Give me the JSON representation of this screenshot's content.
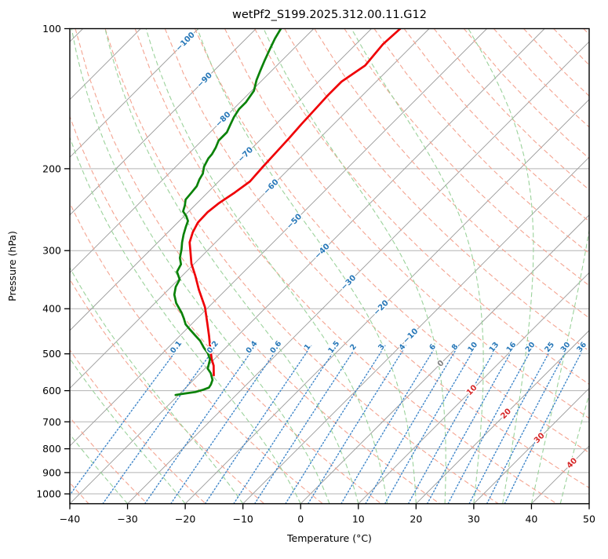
{
  "title": "wetPf2_S199.2025.312.00.11.G12",
  "x_axis": {
    "label": "Temperature (°C)",
    "ticks": [
      -40,
      -30,
      -20,
      -10,
      0,
      10,
      20,
      30,
      40,
      50
    ]
  },
  "y_axis": {
    "label": "Pressure (hPa)",
    "ticks": [
      100,
      200,
      300,
      400,
      500,
      600,
      700,
      800,
      900,
      1000
    ]
  },
  "chart_data": {
    "type": "line",
    "subtype": "skewT-logP",
    "temperature_axis_range_c": [
      -40,
      50
    ],
    "pressure_range_hpa": [
      100,
      1050
    ],
    "skew_deg": 45,
    "grid": true,
    "series": [
      {
        "name": "temperature",
        "color": "#ef0005",
        "units": [
          "hPa",
          "degC"
        ],
        "points": [
          [
            100,
            -65.0
          ],
          [
            108,
            -65.3
          ],
          [
            120,
            -64.7
          ],
          [
            130,
            -66.0
          ],
          [
            139,
            -66.0
          ],
          [
            149,
            -65.8
          ],
          [
            160,
            -65.6
          ],
          [
            172,
            -65.3
          ],
          [
            184,
            -65.1
          ],
          [
            198,
            -64.9
          ],
          [
            213,
            -64.6
          ],
          [
            225,
            -65.3
          ],
          [
            237,
            -66.2
          ],
          [
            248,
            -66.6
          ],
          [
            261,
            -66.5
          ],
          [
            274,
            -65.7
          ],
          [
            288,
            -64.5
          ],
          [
            298,
            -63.2
          ],
          [
            320,
            -60.5
          ],
          [
            340,
            -57.7
          ],
          [
            364,
            -54.7
          ],
          [
            397,
            -50.6
          ],
          [
            429,
            -47.5
          ],
          [
            458,
            -44.9
          ],
          [
            485,
            -42.7
          ],
          [
            514,
            -40.4
          ],
          [
            530,
            -39.0
          ],
          [
            556,
            -37.3
          ]
        ]
      },
      {
        "name": "dewpoint",
        "color": "#0b8209",
        "units": [
          "hPa",
          "degC"
        ],
        "points": [
          [
            100,
            -85.7
          ],
          [
            105,
            -85.0
          ],
          [
            111,
            -84.0
          ],
          [
            117,
            -83.0
          ],
          [
            123,
            -82.0
          ],
          [
            129,
            -81.0
          ],
          [
            136,
            -79.6
          ],
          [
            144,
            -79.0
          ],
          [
            149,
            -79.0
          ],
          [
            155,
            -78.5
          ],
          [
            161,
            -77.8
          ],
          [
            167,
            -77.1
          ],
          [
            174,
            -77.1
          ],
          [
            180,
            -76.4
          ],
          [
            186,
            -75.9
          ],
          [
            190,
            -75.8
          ],
          [
            198,
            -75.1
          ],
          [
            205,
            -74.1
          ],
          [
            211,
            -73.7
          ],
          [
            218,
            -73.0
          ],
          [
            225,
            -72.8
          ],
          [
            233,
            -72.6
          ],
          [
            240,
            -71.7
          ],
          [
            247,
            -71.0
          ],
          [
            253,
            -69.6
          ],
          [
            259,
            -68.5
          ],
          [
            266,
            -67.9
          ],
          [
            277,
            -66.9
          ],
          [
            288,
            -65.8
          ],
          [
            298,
            -64.7
          ],
          [
            311,
            -63.5
          ],
          [
            321,
            -62.2
          ],
          [
            333,
            -61.6
          ],
          [
            346,
            -59.8
          ],
          [
            359,
            -59.2
          ],
          [
            373,
            -58.1
          ],
          [
            389,
            -56.3
          ],
          [
            408,
            -53.7
          ],
          [
            419,
            -52.4
          ],
          [
            432,
            -51.0
          ],
          [
            445,
            -49.1
          ],
          [
            460,
            -46.9
          ],
          [
            469,
            -45.6
          ],
          [
            485,
            -43.8
          ],
          [
            498,
            -42.2
          ],
          [
            514,
            -40.7
          ],
          [
            520,
            -40.4
          ],
          [
            538,
            -39.5
          ],
          [
            550,
            -38.2
          ],
          [
            569,
            -36.7
          ],
          [
            582,
            -36.2
          ],
          [
            591,
            -36.0
          ],
          [
            597,
            -36.6
          ],
          [
            604,
            -37.6
          ],
          [
            608,
            -39.0
          ],
          [
            613,
            -40.5
          ]
        ]
      }
    ],
    "isotherms": {
      "t_start": -130,
      "t_end": 50,
      "step": 10,
      "color": "#999999",
      "labels": [
        [
          -100,
          53
        ],
        [
          -90,
          102
        ],
        [
          -80,
          152
        ],
        [
          -70,
          197
        ],
        [
          -60,
          238
        ],
        [
          -50,
          282
        ],
        [
          -40,
          320
        ],
        [
          -30,
          360
        ],
        [
          -20,
          392
        ],
        [
          -10,
          428
        ],
        [
          0,
          463
        ],
        [
          10,
          497
        ],
        [
          20,
          527
        ],
        [
          30,
          558
        ],
        [
          40,
          590
        ]
      ],
      "label_color_negative": "#2878b8",
      "label_color_zero": "#808080",
      "label_color_positive": "#d62728"
    },
    "dry_adiabats": {
      "theta_start_c": -40,
      "theta_end_c": 190,
      "step_c": 10,
      "color": "#f4a491"
    },
    "moist_adiabats": {
      "tw_values_c": [
        -40,
        -30,
        -20,
        -10,
        0,
        5,
        10,
        15,
        20,
        25,
        30,
        35,
        40,
        45,
        50
      ],
      "color": "#9bd29b"
    },
    "mixing_ratio": {
      "values_g_kg": [
        0.1,
        0.2,
        0.4,
        0.6,
        1,
        1.5,
        2,
        3,
        4,
        6,
        8,
        10,
        13,
        16,
        20,
        25,
        30,
        36
      ],
      "color": "#3f86c9",
      "label_color": "#2878b8",
      "top_pressure_hpa": 480
    },
    "gridline_color": "#b3b3b3"
  }
}
